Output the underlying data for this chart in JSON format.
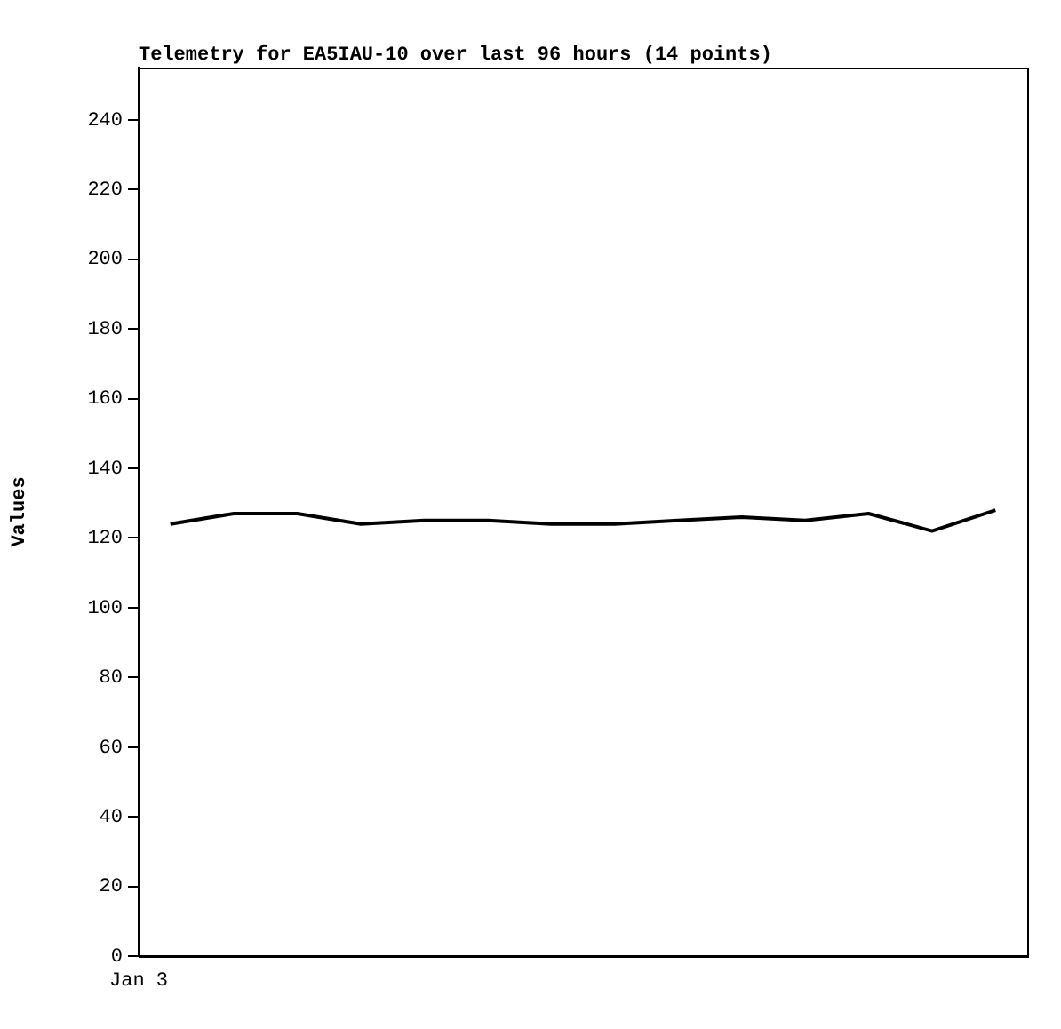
{
  "chart_data": {
    "type": "line",
    "title": "Telemetry for EA5IAU-10 over last 96 hours (14 points)",
    "ylabel": "Values",
    "categories": [
      null,
      null,
      null,
      null,
      null,
      null,
      null,
      null,
      null,
      null,
      null,
      null,
      null,
      null
    ],
    "annotations": [
      "Jan 3"
    ],
    "series": [
      {
        "color": "#000000",
        "values": [
          124,
          127,
          127,
          124,
          125,
          125,
          124,
          124,
          125,
          126,
          125,
          127,
          122,
          128
        ]
      }
    ],
    "ylim": [
      0,
      255
    ],
    "yticks": [
      0,
      20,
      40,
      60,
      80,
      100,
      120,
      140,
      160,
      180,
      200,
      220,
      240
    ],
    "grid": false,
    "legend": false,
    "marker": "none",
    "line_style": "solid"
  }
}
